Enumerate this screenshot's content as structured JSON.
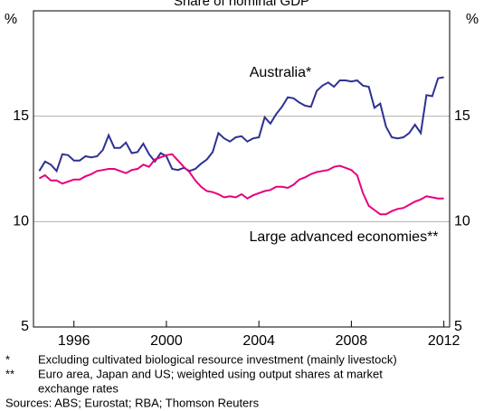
{
  "chart_data": {
    "type": "line",
    "title": "Share of nominal GDP",
    "y_unit": "%",
    "x": [
      1994.5,
      1994.75,
      1995,
      1995.25,
      1995.5,
      1995.75,
      1996,
      1996.25,
      1996.5,
      1996.75,
      1997,
      1997.25,
      1997.5,
      1997.75,
      1998,
      1998.25,
      1998.5,
      1998.75,
      1999,
      1999.25,
      1999.5,
      1999.75,
      2000,
      2000.25,
      2000.5,
      2000.75,
      2001,
      2001.25,
      2001.5,
      2001.75,
      2002,
      2002.25,
      2002.5,
      2002.75,
      2003,
      2003.25,
      2003.5,
      2003.75,
      2004,
      2004.25,
      2004.5,
      2004.75,
      2005,
      2005.25,
      2005.5,
      2005.75,
      2006,
      2006.25,
      2006.5,
      2006.75,
      2007,
      2007.25,
      2007.5,
      2007.75,
      2008,
      2008.25,
      2008.5,
      2008.75,
      2009,
      2009.25,
      2009.5,
      2009.75,
      2010,
      2010.25,
      2010.5,
      2010.75,
      2011,
      2011.25,
      2011.5,
      2011.75,
      2012
    ],
    "series": [
      {
        "name": "Australia*",
        "color": "#2e3192",
        "values": [
          12.4,
          12.85,
          12.7,
          12.4,
          13.2,
          13.15,
          12.9,
          12.9,
          13.1,
          13.05,
          13.1,
          13.4,
          14.1,
          13.5,
          13.5,
          13.75,
          13.25,
          13.3,
          13.7,
          13.2,
          12.85,
          13.25,
          13.1,
          12.5,
          12.45,
          12.55,
          12.4,
          12.5,
          12.75,
          12.95,
          13.3,
          14.2,
          13.95,
          13.8,
          14.0,
          14.05,
          13.8,
          13.95,
          14.0,
          14.95,
          14.65,
          15.1,
          15.45,
          15.9,
          15.85,
          15.65,
          15.5,
          15.45,
          16.2,
          16.45,
          16.6,
          16.4,
          16.7,
          16.7,
          16.65,
          16.7,
          16.45,
          16.4,
          15.4,
          15.6,
          14.5,
          14.0,
          13.95,
          14.0,
          14.2,
          14.6,
          14.2,
          16.0,
          15.95,
          16.8,
          16.85
        ]
      },
      {
        "name": "Large advanced economies**",
        "color": "#e6007e",
        "values": [
          12.05,
          12.2,
          11.95,
          11.95,
          11.8,
          11.9,
          12.0,
          12.0,
          12.15,
          12.25,
          12.4,
          12.45,
          12.5,
          12.5,
          12.4,
          12.3,
          12.45,
          12.5,
          12.7,
          12.6,
          12.95,
          13.05,
          13.15,
          13.2,
          12.9,
          12.6,
          12.35,
          11.95,
          11.65,
          11.45,
          11.4,
          11.3,
          11.15,
          11.2,
          11.15,
          11.3,
          11.1,
          11.25,
          11.35,
          11.45,
          11.5,
          11.65,
          11.65,
          11.6,
          11.75,
          12.0,
          12.1,
          12.25,
          12.35,
          12.4,
          12.45,
          12.6,
          12.65,
          12.55,
          12.45,
          12.2,
          11.35,
          10.75,
          10.55,
          10.35,
          10.35,
          10.5,
          10.6,
          10.65,
          10.8,
          10.95,
          11.05,
          11.2,
          11.15,
          11.1,
          11.1
        ]
      }
    ],
    "xlim": [
      1994.25,
      2012.25
    ],
    "xticks": [
      1996,
      2000,
      2004,
      2008,
      2012
    ],
    "ylim": [
      5,
      20
    ],
    "yticks": [
      5,
      10,
      15
    ],
    "grid": true,
    "notes": [
      {
        "marker": "*",
        "text": "Excluding cultivated biological resource investment (mainly livestock)"
      },
      {
        "marker": "**",
        "text": "Euro area, Japan and US; weighted using output shares at market"
      },
      {
        "marker": "",
        "text": "exchange rates"
      }
    ],
    "sources": "Sources: ABS; Eurostat; RBA; Thomson Reuters"
  }
}
